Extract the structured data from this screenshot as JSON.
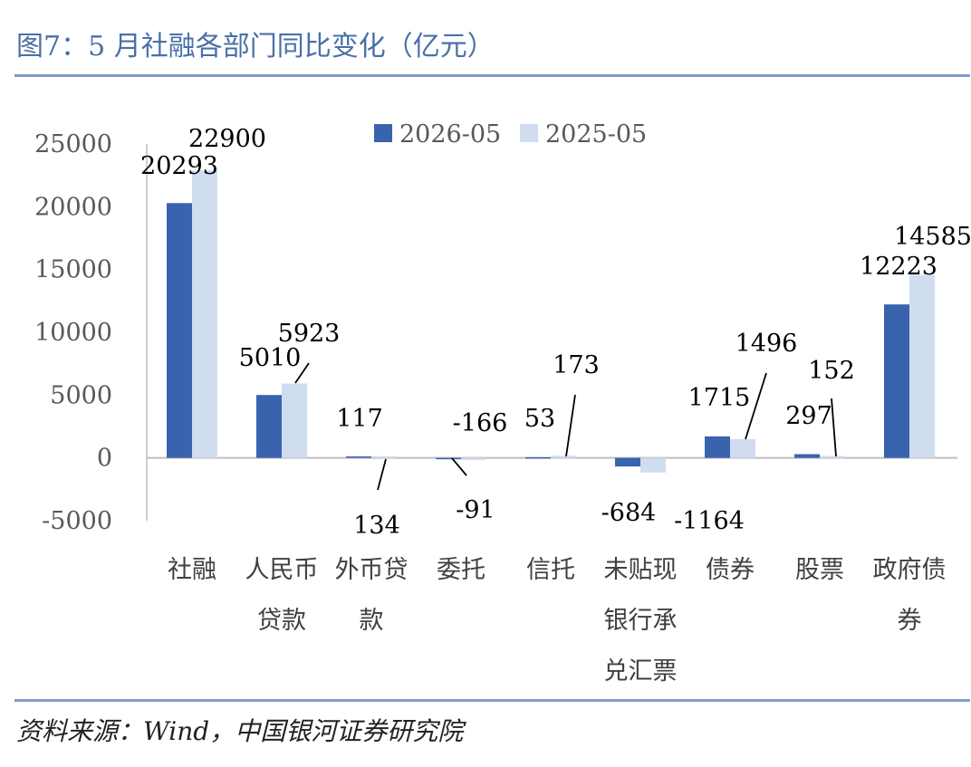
{
  "title": "图7：5 月社融各部门同比变化（亿元）",
  "source": "资料来源：Wind，中国银河证券研究院",
  "colors": {
    "series1": "#3a63ad",
    "series2": "#d0dcf0",
    "title": "#4a6fa8",
    "rule": "#7f9ccb",
    "axis": "#bfbfbf"
  },
  "chart_data": {
    "type": "bar",
    "categories": [
      [
        "社融"
      ],
      [
        "人民币",
        "贷款"
      ],
      [
        "外币贷",
        "款"
      ],
      [
        "委托"
      ],
      [
        "信托"
      ],
      [
        "未贴现",
        "银行承",
        "兑汇票"
      ],
      [
        "债券"
      ],
      [
        "股票"
      ],
      [
        "政府债",
        "券"
      ]
    ],
    "series": [
      {
        "name": "2026-05",
        "values": [
          20293,
          5010,
          117,
          -91,
          53,
          -684,
          1715,
          297,
          12223
        ]
      },
      {
        "name": "2025-05",
        "values": [
          22900,
          5923,
          134,
          -166,
          173,
          -1164,
          1496,
          152,
          14585
        ]
      }
    ],
    "yticks": [
      "25000",
      "20000",
      "15000",
      "10000",
      "5000",
      "0",
      "-5000"
    ],
    "ylim": [
      -5000,
      25000
    ],
    "legend_position": "top",
    "grid": false
  }
}
